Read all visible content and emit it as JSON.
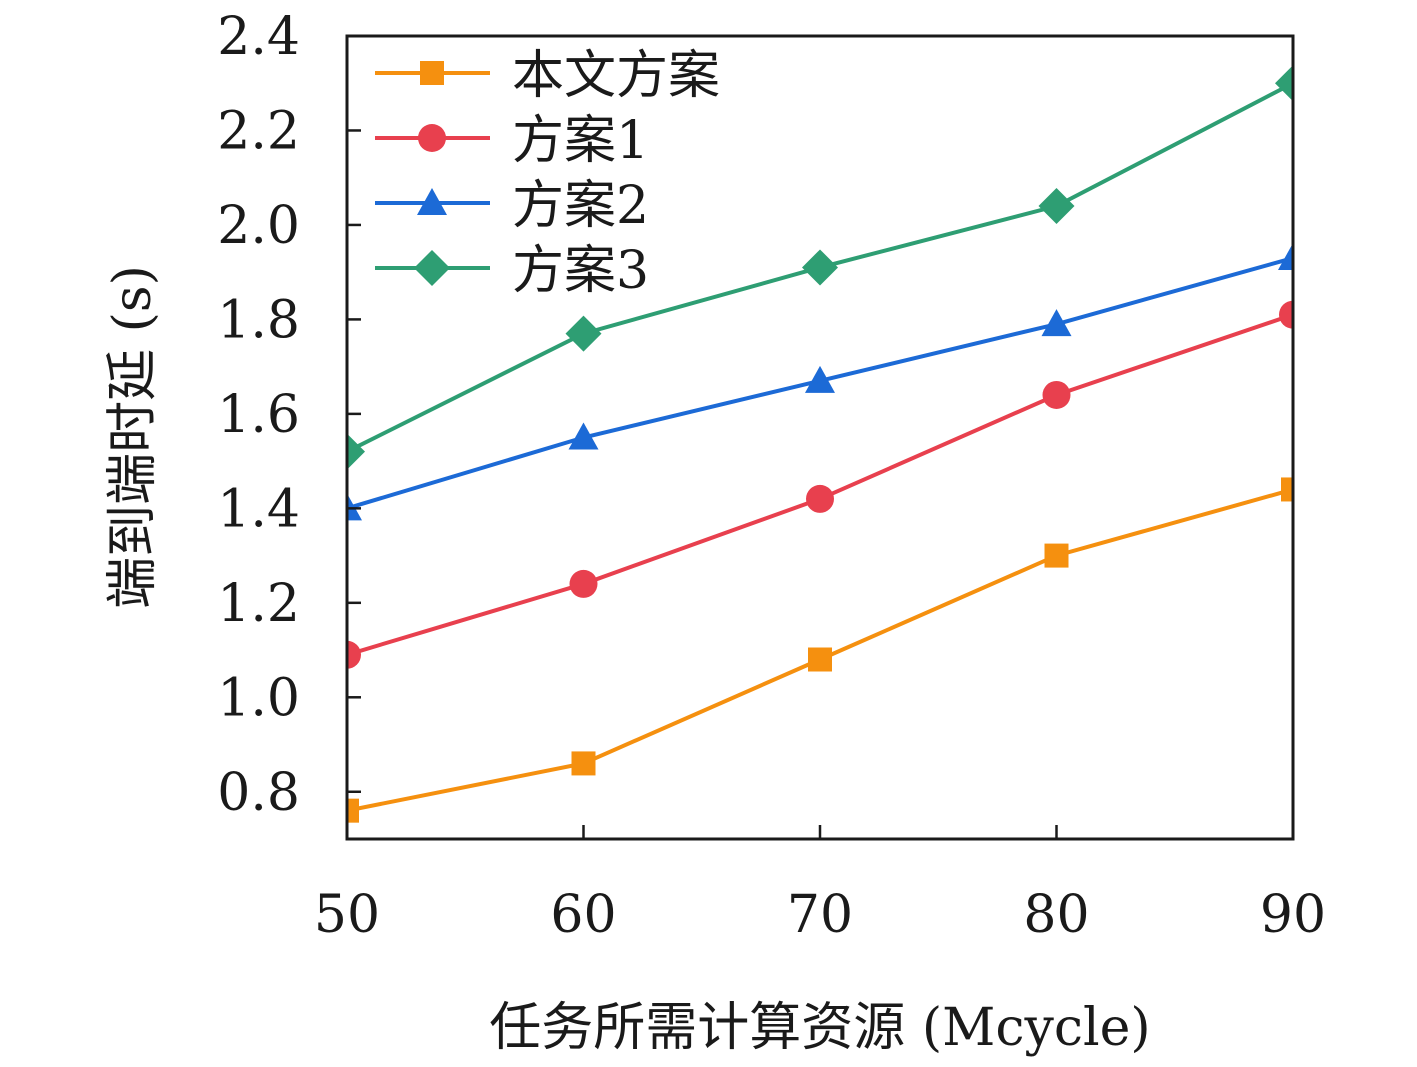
{
  "chart_data": {
    "type": "line",
    "xlabel": "任务所需计算资源 (Mcycle)",
    "ylabel": "端到端时延 (s)",
    "x": [
      50,
      60,
      70,
      80,
      90
    ],
    "xlim": [
      50,
      90
    ],
    "ylim": [
      0.7,
      2.4
    ],
    "xticks": [
      "50",
      "60",
      "70",
      "80",
      "90"
    ],
    "yticks": [
      "0.8",
      "1.0",
      "1.2",
      "1.4",
      "1.6",
      "1.8",
      "2.0",
      "2.2",
      "2.4"
    ],
    "grid": false,
    "legend_position": "top-left",
    "series": [
      {
        "name": "本文方案",
        "values": [
          0.76,
          0.86,
          1.08,
          1.3,
          1.44
        ],
        "color": "#F5900F",
        "marker": "square"
      },
      {
        "name": "方案1",
        "values": [
          1.09,
          1.24,
          1.42,
          1.64,
          1.81
        ],
        "color": "#E8404E",
        "marker": "circle"
      },
      {
        "name": "方案2",
        "values": [
          1.4,
          1.55,
          1.67,
          1.79,
          1.93
        ],
        "color": "#1C6AD6",
        "marker": "triangle"
      },
      {
        "name": "方案3",
        "values": [
          1.52,
          1.77,
          1.91,
          2.04,
          2.3
        ],
        "color": "#2E9E73",
        "marker": "diamond"
      }
    ]
  }
}
